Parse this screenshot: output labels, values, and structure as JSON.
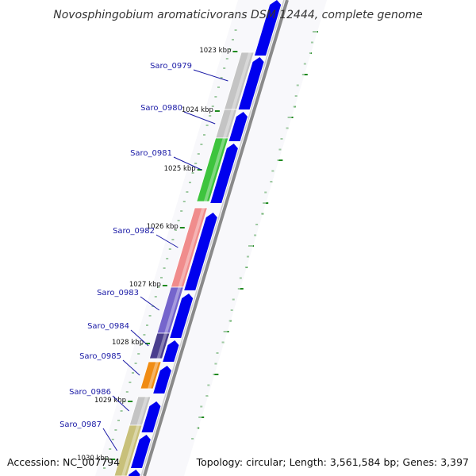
{
  "title": "Novosphingobium aromaticivorans DSM 12444, complete genome",
  "accession": "Accession: NC_007794",
  "topology": "Topology: circular; Length: 3,561,584 bp; Genes: 3,397",
  "ticks": [
    "1023 kbp",
    "1024 kbp",
    "1025 kbp",
    "1026 kbp",
    "1027 kbp",
    "1028 kbp",
    "1029 kbp",
    "1030 kbp"
  ],
  "genes": [
    {
      "label": "Saro_0979",
      "color": "#c4c4c4",
      "strand": "forward"
    },
    {
      "label": "Saro_0980",
      "color": "#c4c4c4",
      "strand": "forward"
    },
    {
      "label": "Saro_0981",
      "color": "#3ec43e",
      "strand": "forward"
    },
    {
      "label": "Saro_0982",
      "color": "#f08c8c",
      "strand": "forward"
    },
    {
      "label": "Saro_0983",
      "color": "#7565cc",
      "strand": "forward"
    },
    {
      "label": "Saro_0984",
      "color": "#4a3e8e",
      "strand": "forward"
    },
    {
      "label": "Saro_0985",
      "color": "#f08c14",
      "strand": "forward"
    },
    {
      "label": "Saro_0986",
      "color": "#c4c4c4",
      "strand": "forward"
    },
    {
      "label": "Saro_0987",
      "color": "#c8c07a",
      "strand": "forward"
    }
  ],
  "colors": {
    "strand_arrow": "#0000ee",
    "backbone": "#8a8a8a",
    "gc_skew": "#1f8a1f",
    "label_link": "#1a1aa6"
  }
}
